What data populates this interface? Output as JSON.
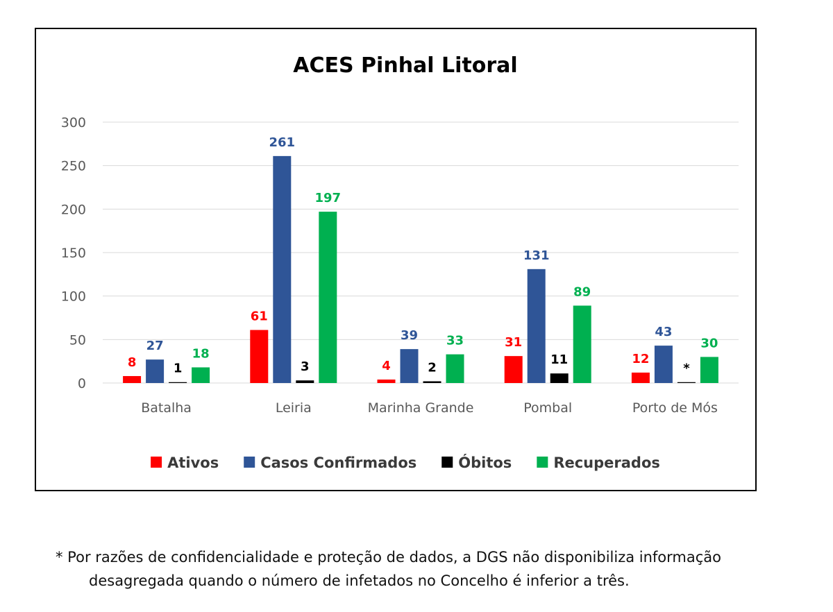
{
  "chart_data": {
    "type": "bar",
    "title": "ACES Pinhal Litoral",
    "xlabel": "",
    "ylabel": "",
    "ylim": [
      0,
      300
    ],
    "yticks": [
      0,
      50,
      100,
      150,
      200,
      250,
      300
    ],
    "grid": true,
    "legend_position": "bottom",
    "categories": [
      "Batalha",
      "Leiria",
      "Marinha Grande",
      "Pombal",
      "Porto de Mós"
    ],
    "series": [
      {
        "name": "Ativos",
        "color": "#ff0000",
        "values": [
          8,
          61,
          4,
          31,
          12
        ],
        "labels": [
          "8",
          "61",
          "4",
          "31",
          "12"
        ]
      },
      {
        "name": "Casos Confirmados",
        "color": "#2f5597",
        "values": [
          27,
          261,
          39,
          131,
          43
        ],
        "labels": [
          "27",
          "261",
          "39",
          "131",
          "43"
        ]
      },
      {
        "name": "Óbitos",
        "color": "#000000",
        "values": [
          1,
          3,
          2,
          11,
          1
        ],
        "labels": [
          "1",
          "3",
          "2",
          "11",
          "*"
        ]
      },
      {
        "name": "Recuperados",
        "color": "#00b050",
        "values": [
          18,
          197,
          33,
          89,
          30
        ],
        "labels": [
          "18",
          "197",
          "33",
          "89",
          "30"
        ]
      }
    ]
  },
  "footnote": {
    "line1": "* Por razões de confidencialidade e proteção de dados, a DGS não disponibiliza informação",
    "line2": "desagregada quando o número de infetados no Concelho é inferior a três."
  }
}
